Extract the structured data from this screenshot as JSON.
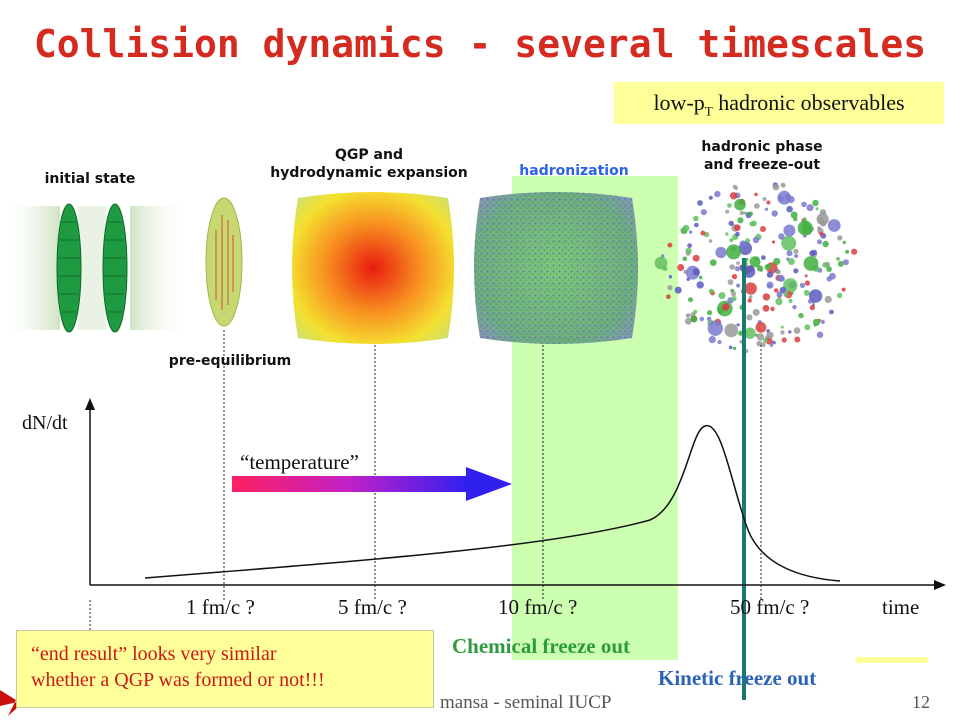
{
  "slide": {
    "title": "Collision dynamics - several timescales",
    "observables_box": "low-p",
    "observables_sub": "T",
    "observables_tail": " hadronic observables",
    "note_line1": "“end result” looks very similar",
    "note_line2": "whether a QGP was formed or not!!!",
    "footer": "mansa - seminal IUCP",
    "page_number": "12"
  },
  "stages": {
    "initial": "initial state",
    "pre": "pre-equilibrium",
    "qgp_line1": "QGP and",
    "qgp_line2": "hydrodynamic expansion",
    "hadronization": "hadronization",
    "hadronic_line1": "hadronic phase",
    "hadronic_line2": "and freeze-out"
  },
  "plot": {
    "ylabel": "dN/dt",
    "xlabel": "time",
    "arrow_label": "“temperature”",
    "ticks": [
      "1 fm/c ?",
      "5 fm/c ?",
      "10 fm/c ?",
      "50 fm/c ?"
    ],
    "chemical_label": "Chemical freeze out",
    "kinetic_label": "Kinetic freeze out"
  },
  "colors": {
    "title": "#d42a1f",
    "hadronization": "#2a62e8",
    "band": "#ccffb0",
    "kinetic_line": "#1a7a70",
    "note_text": "#cc1818",
    "chemical_text": "#2e9a3e",
    "kinetic_text": "#2a62b8"
  }
}
